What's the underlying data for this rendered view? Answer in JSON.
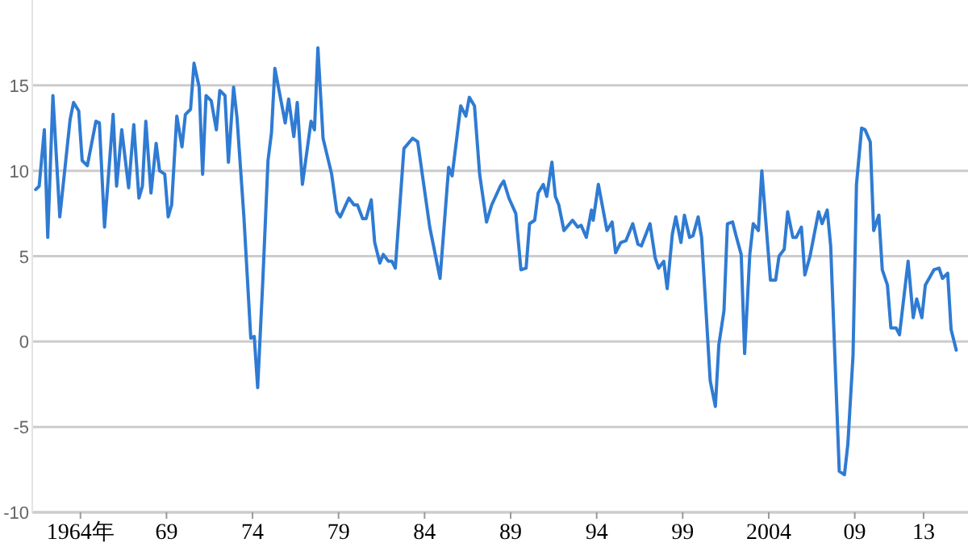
{
  "chart_data": {
    "type": "line",
    "grid": "y",
    "xlim": [
      1961.2,
      2015.3
    ],
    "ylim": [
      -10,
      20
    ],
    "yticks": [
      -10,
      -5,
      0,
      5,
      10,
      15
    ],
    "xticks": [
      {
        "value": 1964,
        "label": "1964年"
      },
      {
        "value": 1969,
        "label": "69"
      },
      {
        "value": 1974,
        "label": "74"
      },
      {
        "value": 1979,
        "label": "79"
      },
      {
        "value": 1984,
        "label": "84"
      },
      {
        "value": 1989,
        "label": "89"
      },
      {
        "value": 1994,
        "label": "94"
      },
      {
        "value": 1999,
        "label": "99"
      },
      {
        "value": 2004,
        "label": "2004"
      },
      {
        "value": 2009,
        "label": "09"
      },
      {
        "value": 2013,
        "label": "13"
      }
    ],
    "series": [
      {
        "color": "#2f7bd3",
        "x": [
          1961.4,
          1961.6,
          1961.9,
          1962.1,
          1962.4,
          1962.8,
          1963.4,
          1963.6,
          1963.9,
          1964.1,
          1964.4,
          1964.9,
          1965.1,
          1965.4,
          1965.9,
          1966.1,
          1966.4,
          1966.8,
          1967.1,
          1967.4,
          1967.6,
          1967.8,
          1968.1,
          1968.4,
          1968.6,
          1968.9,
          1969.1,
          1969.3,
          1969.6,
          1969.9,
          1970.1,
          1970.4,
          1970.6,
          1970.9,
          1971.1,
          1971.3,
          1971.6,
          1971.9,
          1972.1,
          1972.4,
          1972.6,
          1972.9,
          1973.1,
          1973.5,
          1973.9,
          1974.1,
          1974.3,
          1974.6,
          1974.9,
          1975.1,
          1975.3,
          1975.6,
          1975.9,
          1976.1,
          1976.4,
          1976.6,
          1976.9,
          1977.4,
          1977.6,
          1977.8,
          1978.1,
          1978.6,
          1978.9,
          1979.1,
          1979.6,
          1979.9,
          1980.1,
          1980.4,
          1980.6,
          1980.9,
          1981.1,
          1981.4,
          1981.6,
          1981.9,
          1982.1,
          1982.3,
          1982.8,
          1983.3,
          1983.6,
          1984.3,
          1984.9,
          1985.4,
          1985.6,
          1986.1,
          1986.4,
          1986.6,
          1986.9,
          1987.2,
          1987.6,
          1987.9,
          1988.4,
          1988.6,
          1988.9,
          1989.3,
          1989.6,
          1989.9,
          1990.1,
          1990.4,
          1990.6,
          1990.9,
          1991.1,
          1991.4,
          1991.6,
          1991.8,
          1992.1,
          1992.6,
          1992.9,
          1993.1,
          1993.4,
          1993.7,
          1993.8,
          1994.1,
          1994.6,
          1994.9,
          1995.1,
          1995.4,
          1995.7,
          1996.1,
          1996.4,
          1996.6,
          1997.1,
          1997.4,
          1997.6,
          1997.9,
          1998.1,
          1998.4,
          1998.6,
          1998.9,
          1999.1,
          1999.4,
          1999.6,
          1999.9,
          2000.1,
          2000.6,
          2000.9,
          2001.1,
          2001.4,
          2001.6,
          2001.9,
          2002.1,
          2002.4,
          2002.6,
          2002.9,
          2003.1,
          2003.4,
          2003.6,
          2004.1,
          2004.4,
          2004.6,
          2004.9,
          2005.1,
          2005.4,
          2005.6,
          2005.9,
          2006.1,
          2006.4,
          2006.9,
          2007.1,
          2007.4,
          2007.6,
          2008.1,
          2008.4,
          2008.6,
          2008.9,
          2009.1,
          2009.4,
          2009.6,
          2009.9,
          2010.1,
          2010.4,
          2010.6,
          2010.9,
          2011.1,
          2011.4,
          2011.6,
          2012.1,
          2012.4,
          2012.6,
          2012.9,
          2013.1,
          2013.6,
          2013.9,
          2014.1,
          2014.4,
          2014.6,
          2014.9
        ],
        "values": [
          8.9,
          9.1,
          12.4,
          6.1,
          14.4,
          7.3,
          13.0,
          14.0,
          13.5,
          10.6,
          10.3,
          12.9,
          12.8,
          6.7,
          13.3,
          9.1,
          12.4,
          9.0,
          12.7,
          8.4,
          9.1,
          12.9,
          8.7,
          11.6,
          10.0,
          9.8,
          7.3,
          8.0,
          13.2,
          11.4,
          13.3,
          13.6,
          16.3,
          14.9,
          9.8,
          14.4,
          14.1,
          12.4,
          14.7,
          14.4,
          10.5,
          14.9,
          13.1,
          7.3,
          0.2,
          0.3,
          -2.7,
          3.6,
          10.6,
          12.2,
          16.0,
          14.4,
          12.8,
          14.2,
          12.0,
          14.0,
          9.2,
          12.9,
          12.4,
          17.2,
          11.9,
          9.8,
          7.6,
          7.3,
          8.4,
          8.0,
          8.0,
          7.2,
          7.2,
          8.3,
          5.8,
          4.6,
          5.1,
          4.7,
          4.7,
          4.3,
          11.3,
          11.9,
          11.7,
          6.7,
          3.7,
          10.2,
          9.7,
          13.8,
          13.2,
          14.3,
          13.8,
          9.8,
          7.0,
          8.0,
          9.1,
          9.4,
          8.4,
          7.5,
          4.2,
          4.3,
          6.9,
          7.1,
          8.7,
          9.2,
          8.5,
          10.5,
          8.5,
          8.0,
          6.5,
          7.1,
          6.7,
          6.8,
          6.1,
          7.7,
          7.1,
          9.2,
          6.5,
          7.0,
          5.2,
          5.8,
          5.9,
          6.9,
          5.7,
          5.6,
          6.9,
          4.9,
          4.3,
          4.7,
          3.1,
          6.3,
          7.3,
          5.8,
          7.4,
          6.1,
          6.2,
          7.3,
          6.1,
          -2.3,
          -3.8,
          -0.2,
          1.8,
          6.9,
          7.0,
          6.2,
          5.1,
          -0.7,
          5.1,
          6.9,
          6.5,
          10.0,
          3.6,
          3.6,
          5.0,
          5.4,
          7.6,
          6.1,
          6.1,
          6.7,
          3.9,
          5.0,
          7.6,
          6.9,
          7.7,
          5.6,
          -7.6,
          -7.8,
          -6.0,
          -0.8,
          9.2,
          12.5,
          12.4,
          11.7,
          6.5,
          7.4,
          4.2,
          3.3,
          0.8,
          0.8,
          0.4,
          4.7,
          1.4,
          2.5,
          1.4,
          3.3,
          4.2,
          4.3,
          3.7,
          4.0,
          0.7,
          -0.5
        ]
      }
    ]
  }
}
